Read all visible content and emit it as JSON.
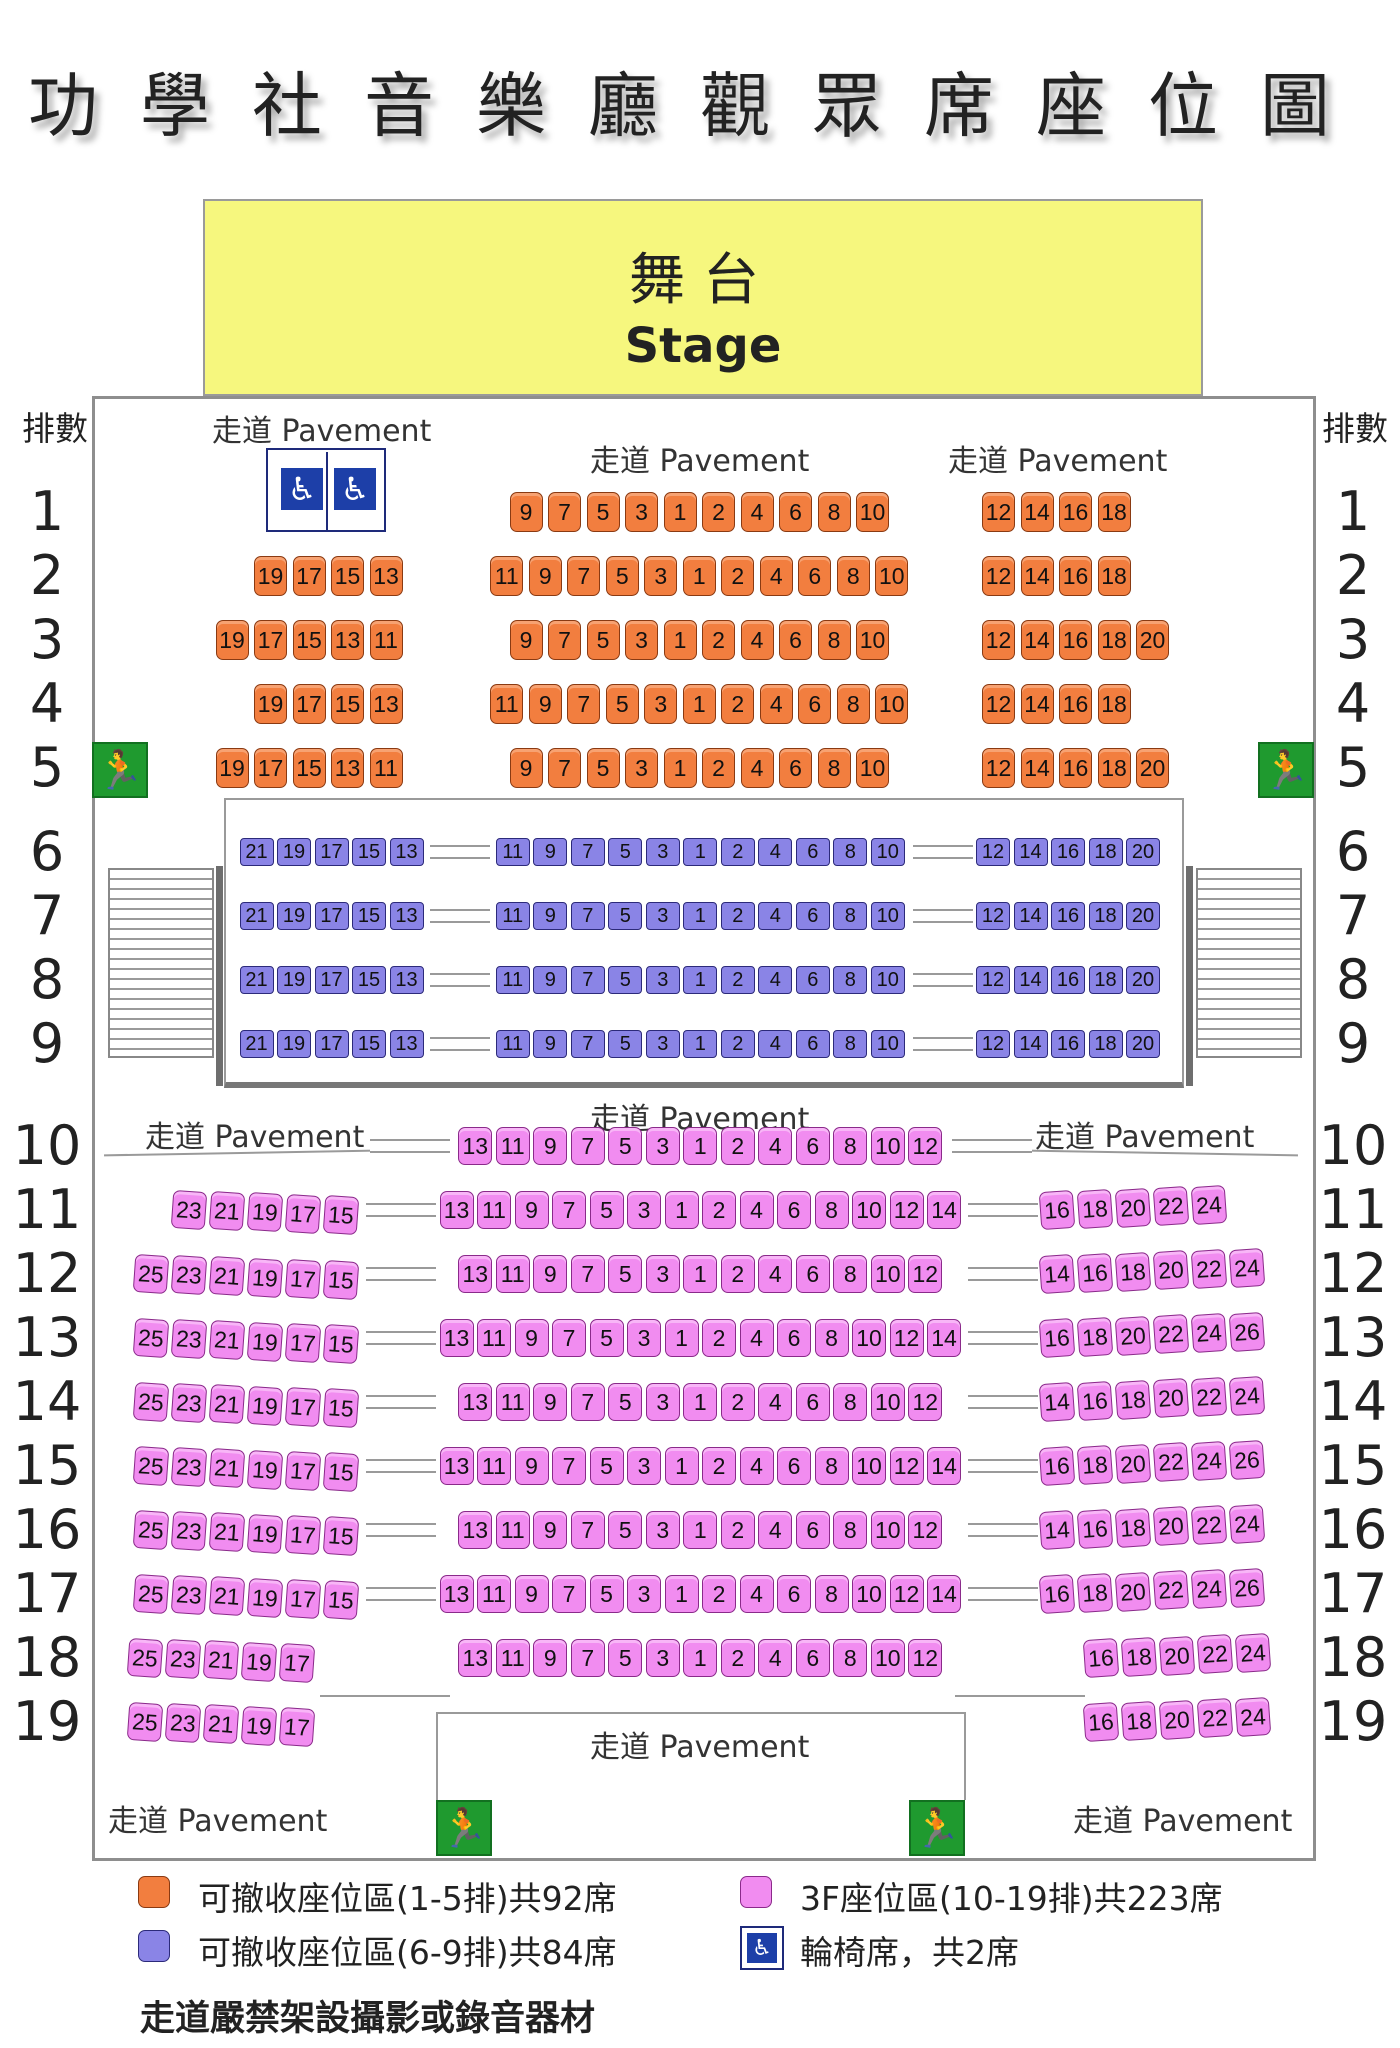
{
  "title": "功學社音樂廳觀眾席座位圖",
  "stage": {
    "label_zh": "舞台",
    "label_en": "Stage"
  },
  "row_header": "排數",
  "row_numbers": [
    "1",
    "2",
    "3",
    "4",
    "5",
    "6",
    "7",
    "8",
    "9",
    "10",
    "11",
    "12",
    "13",
    "14",
    "15",
    "16",
    "17",
    "18",
    "19"
  ],
  "pavement_labels": {
    "top_left": "走道 Pavement",
    "top_center": "走道 Pavement",
    "top_right": "走道 Pavement",
    "mid_left": "走道 Pavement",
    "mid_center": "走道 Pavement",
    "mid_right": "走道 Pavement",
    "bottom_center": "走道 Pavement",
    "bottom_left": "走道 Pavement",
    "bottom_right": "走道 Pavement"
  },
  "seating": {
    "orange_rows": [
      {
        "row": "1",
        "left": [],
        "center": [
          "9",
          "7",
          "5",
          "3",
          "1",
          "2",
          "4",
          "6",
          "8",
          "10"
        ],
        "right": [
          "12",
          "14",
          "16",
          "18"
        ]
      },
      {
        "row": "2",
        "left": [
          "19",
          "17",
          "15",
          "13"
        ],
        "center": [
          "11",
          "9",
          "7",
          "5",
          "3",
          "1",
          "2",
          "4",
          "6",
          "8",
          "10"
        ],
        "right": [
          "12",
          "14",
          "16",
          "18"
        ]
      },
      {
        "row": "3",
        "left": [
          "19",
          "17",
          "15",
          "13",
          "11"
        ],
        "center": [
          "9",
          "7",
          "5",
          "3",
          "1",
          "2",
          "4",
          "6",
          "8",
          "10"
        ],
        "right": [
          "12",
          "14",
          "16",
          "18",
          "20"
        ]
      },
      {
        "row": "4",
        "left": [
          "19",
          "17",
          "15",
          "13"
        ],
        "center": [
          "11",
          "9",
          "7",
          "5",
          "3",
          "1",
          "2",
          "4",
          "6",
          "8",
          "10"
        ],
        "right": [
          "12",
          "14",
          "16",
          "18"
        ]
      },
      {
        "row": "5",
        "left": [
          "19",
          "17",
          "15",
          "13",
          "11"
        ],
        "center": [
          "9",
          "7",
          "5",
          "3",
          "1",
          "2",
          "4",
          "6",
          "8",
          "10"
        ],
        "right": [
          "12",
          "14",
          "16",
          "18",
          "20"
        ]
      }
    ],
    "blue_rows": [
      {
        "row": "6",
        "left": [
          "21",
          "19",
          "17",
          "15",
          "13"
        ],
        "center": [
          "11",
          "9",
          "7",
          "5",
          "3",
          "1",
          "2",
          "4",
          "6",
          "8",
          "10"
        ],
        "right": [
          "12",
          "14",
          "16",
          "18",
          "20"
        ]
      },
      {
        "row": "7",
        "left": [
          "21",
          "19",
          "17",
          "15",
          "13"
        ],
        "center": [
          "11",
          "9",
          "7",
          "5",
          "3",
          "1",
          "2",
          "4",
          "6",
          "8",
          "10"
        ],
        "right": [
          "12",
          "14",
          "16",
          "18",
          "20"
        ]
      },
      {
        "row": "8",
        "left": [
          "21",
          "19",
          "17",
          "15",
          "13"
        ],
        "center": [
          "11",
          "9",
          "7",
          "5",
          "3",
          "1",
          "2",
          "4",
          "6",
          "8",
          "10"
        ],
        "right": [
          "12",
          "14",
          "16",
          "18",
          "20"
        ]
      },
      {
        "row": "9",
        "left": [
          "21",
          "19",
          "17",
          "15",
          "13"
        ],
        "center": [
          "11",
          "9",
          "7",
          "5",
          "3",
          "1",
          "2",
          "4",
          "6",
          "8",
          "10"
        ],
        "right": [
          "12",
          "14",
          "16",
          "18",
          "20"
        ]
      }
    ],
    "pink_rows": [
      {
        "row": "10",
        "left": [],
        "center": [
          "13",
          "11",
          "9",
          "7",
          "5",
          "3",
          "1",
          "2",
          "4",
          "6",
          "8",
          "10",
          "12"
        ],
        "right": []
      },
      {
        "row": "11",
        "left": [
          "23",
          "21",
          "19",
          "17",
          "15"
        ],
        "center": [
          "13",
          "11",
          "9",
          "7",
          "5",
          "3",
          "1",
          "2",
          "4",
          "6",
          "8",
          "10",
          "12",
          "14"
        ],
        "right": [
          "16",
          "18",
          "20",
          "22",
          "24"
        ]
      },
      {
        "row": "12",
        "left": [
          "25",
          "23",
          "21",
          "19",
          "17",
          "15"
        ],
        "center": [
          "13",
          "11",
          "9",
          "7",
          "5",
          "3",
          "1",
          "2",
          "4",
          "6",
          "8",
          "10",
          "12"
        ],
        "right": [
          "14",
          "16",
          "18",
          "20",
          "22",
          "24"
        ]
      },
      {
        "row": "13",
        "left": [
          "25",
          "23",
          "21",
          "19",
          "17",
          "15"
        ],
        "center": [
          "13",
          "11",
          "9",
          "7",
          "5",
          "3",
          "1",
          "2",
          "4",
          "6",
          "8",
          "10",
          "12",
          "14"
        ],
        "right": [
          "16",
          "18",
          "20",
          "22",
          "24",
          "26"
        ]
      },
      {
        "row": "14",
        "left": [
          "25",
          "23",
          "21",
          "19",
          "17",
          "15"
        ],
        "center": [
          "13",
          "11",
          "9",
          "7",
          "5",
          "3",
          "1",
          "2",
          "4",
          "6",
          "8",
          "10",
          "12"
        ],
        "right": [
          "14",
          "16",
          "18",
          "20",
          "22",
          "24"
        ]
      },
      {
        "row": "15",
        "left": [
          "25",
          "23",
          "21",
          "19",
          "17",
          "15"
        ],
        "center": [
          "13",
          "11",
          "9",
          "7",
          "5",
          "3",
          "1",
          "2",
          "4",
          "6",
          "8",
          "10",
          "12",
          "14"
        ],
        "right": [
          "16",
          "18",
          "20",
          "22",
          "24",
          "26"
        ]
      },
      {
        "row": "16",
        "left": [
          "25",
          "23",
          "21",
          "19",
          "17",
          "15"
        ],
        "center": [
          "13",
          "11",
          "9",
          "7",
          "5",
          "3",
          "1",
          "2",
          "4",
          "6",
          "8",
          "10",
          "12"
        ],
        "right": [
          "14",
          "16",
          "18",
          "20",
          "22",
          "24"
        ]
      },
      {
        "row": "17",
        "left": [
          "25",
          "23",
          "21",
          "19",
          "17",
          "15"
        ],
        "center": [
          "13",
          "11",
          "9",
          "7",
          "5",
          "3",
          "1",
          "2",
          "4",
          "6",
          "8",
          "10",
          "12",
          "14"
        ],
        "right": [
          "16",
          "18",
          "20",
          "22",
          "24",
          "26"
        ]
      },
      {
        "row": "18",
        "left": [
          "25",
          "23",
          "21",
          "19",
          "17"
        ],
        "center": [
          "13",
          "11",
          "9",
          "7",
          "5",
          "3",
          "1",
          "2",
          "4",
          "6",
          "8",
          "10",
          "12"
        ],
        "right": [
          "16",
          "18",
          "20",
          "22",
          "24"
        ]
      },
      {
        "row": "19",
        "left": [
          "25",
          "23",
          "21",
          "19",
          "17"
        ],
        "center": [],
        "right": [
          "16",
          "18",
          "20",
          "22",
          "24"
        ]
      }
    ]
  },
  "wheelchair_spaces": 2,
  "exit_icon": "emergency-exit-icon",
  "wheelchair_icon": "wheelchair-icon",
  "colors": {
    "orange": "#f27e3f",
    "blue": "#8a84e6",
    "pink": "#f18cf0",
    "stage": "#f6f77e",
    "exit": "#1f9a2f",
    "wheelchair": "#1d3fa8"
  },
  "legend": {
    "orange": "可撤收座位區(1-5排)共92席",
    "blue": "可撤收座位區(6-9排)共84席",
    "pink": "3F座位區(10-19排)共223席",
    "wheelchair": "輪椅席，共2席"
  },
  "notice": "走道嚴禁架設攝影或錄音器材"
}
